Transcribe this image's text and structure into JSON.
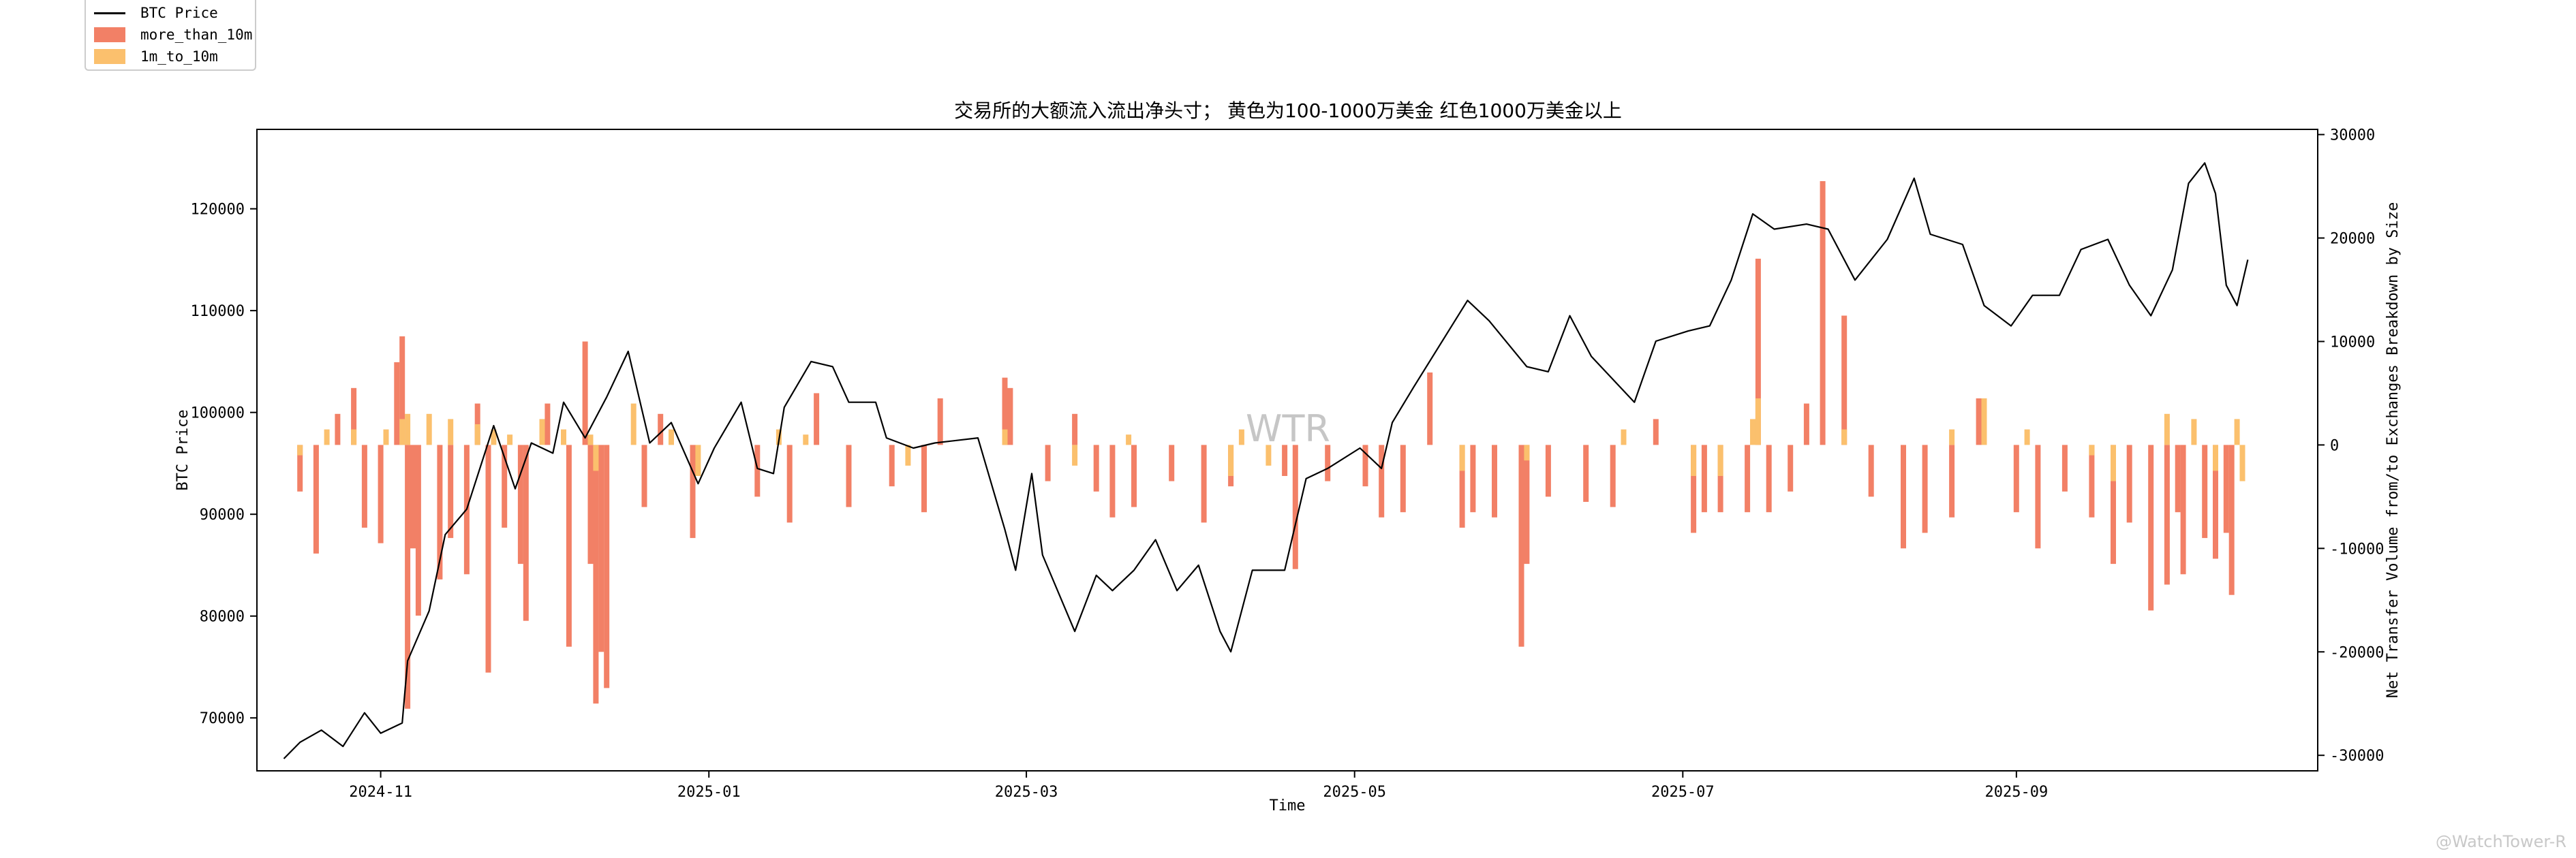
{
  "chart_data": {
    "type": "bar+line",
    "title": "交易所的大额流入流出净头寸； 黄色为100-1000万美金 红色1000万美金以上",
    "xlabel": "Time",
    "ylabel_left": "BTC Price",
    "ylabel_right": "Net Transfer Volume from/to Exchanges Breakdown by Size",
    "x_range": [
      "2024-10-09",
      "2025-10-27"
    ],
    "ylim_left": [
      64800,
      127800
    ],
    "ylim_right": [
      -31500,
      30500
    ],
    "x_ticks": [
      {
        "date": "2024-11-01",
        "label": "2024-11"
      },
      {
        "date": "2025-01-01",
        "label": "2025-01"
      },
      {
        "date": "2025-03-01",
        "label": "2025-03"
      },
      {
        "date": "2025-05-01",
        "label": "2025-05"
      },
      {
        "date": "2025-07-01",
        "label": "2025-07"
      },
      {
        "date": "2025-09-01",
        "label": "2025-09"
      }
    ],
    "y_ticks_left": [
      70000,
      80000,
      90000,
      100000,
      110000,
      120000
    ],
    "y_ticks_right": [
      -30000,
      -20000,
      -10000,
      0,
      10000,
      20000,
      30000
    ],
    "legend": {
      "placement": "upper-left-outside",
      "items": [
        {
          "label": "BTC Price",
          "kind": "line",
          "color": "#000000"
        },
        {
          "label": "more_than_10m",
          "kind": "bar",
          "color": "#f28066"
        },
        {
          "label": "1m_to_10m",
          "kind": "bar",
          "color": "#fbc06d"
        }
      ]
    },
    "watermark_center": "WTR",
    "price_series": {
      "name": "BTC Price",
      "color": "#000000",
      "points": [
        [
          "2024-10-14",
          66000
        ],
        [
          "2024-10-17",
          67600
        ],
        [
          "2024-10-21",
          68800
        ],
        [
          "2024-10-25",
          67200
        ],
        [
          "2024-10-29",
          70500
        ],
        [
          "2024-11-01",
          68500
        ],
        [
          "2024-11-05",
          69500
        ],
        [
          "2024-11-06",
          75600
        ],
        [
          "2024-11-10",
          80500
        ],
        [
          "2024-11-13",
          88000
        ],
        [
          "2024-11-17",
          90500
        ],
        [
          "2024-11-22",
          98700
        ],
        [
          "2024-11-26",
          92500
        ],
        [
          "2024-11-29",
          97000
        ],
        [
          "2024-12-03",
          96000
        ],
        [
          "2024-12-05",
          101000
        ],
        [
          "2024-12-09",
          97500
        ],
        [
          "2024-12-13",
          101500
        ],
        [
          "2024-12-17",
          106000
        ],
        [
          "2024-12-21",
          97000
        ],
        [
          "2024-12-25",
          99000
        ],
        [
          "2024-12-30",
          93000
        ],
        [
          "2025-01-02",
          96500
        ],
        [
          "2025-01-07",
          101000
        ],
        [
          "2025-01-10",
          94500
        ],
        [
          "2025-01-13",
          94000
        ],
        [
          "2025-01-15",
          100500
        ],
        [
          "2025-01-20",
          105000
        ],
        [
          "2025-01-24",
          104500
        ],
        [
          "2025-01-27",
          101000
        ],
        [
          "2025-02-01",
          101000
        ],
        [
          "2025-02-03",
          97500
        ],
        [
          "2025-02-08",
          96500
        ],
        [
          "2025-02-12",
          97000
        ],
        [
          "2025-02-20",
          97500
        ],
        [
          "2025-02-25",
          88500
        ],
        [
          "2025-02-27",
          84500
        ],
        [
          "2025-03-02",
          94000
        ],
        [
          "2025-03-04",
          86000
        ],
        [
          "2025-03-10",
          78500
        ],
        [
          "2025-03-14",
          84000
        ],
        [
          "2025-03-17",
          82500
        ],
        [
          "2025-03-21",
          84500
        ],
        [
          "2025-03-25",
          87500
        ],
        [
          "2025-03-29",
          82500
        ],
        [
          "2025-04-02",
          85000
        ],
        [
          "2025-04-06",
          78500
        ],
        [
          "2025-04-08",
          76500
        ],
        [
          "2025-04-12",
          84500
        ],
        [
          "2025-04-18",
          84500
        ],
        [
          "2025-04-22",
          93500
        ],
        [
          "2025-04-26",
          94500
        ],
        [
          "2025-05-02",
          96500
        ],
        [
          "2025-05-06",
          94500
        ],
        [
          "2025-05-08",
          99000
        ],
        [
          "2025-05-12",
          102500
        ],
        [
          "2025-05-22",
          111000
        ],
        [
          "2025-05-26",
          109000
        ],
        [
          "2025-06-02",
          104500
        ],
        [
          "2025-06-06",
          104000
        ],
        [
          "2025-06-10",
          109500
        ],
        [
          "2025-06-14",
          105500
        ],
        [
          "2025-06-22",
          101000
        ],
        [
          "2025-06-26",
          107000
        ],
        [
          "2025-07-02",
          108000
        ],
        [
          "2025-07-06",
          108500
        ],
        [
          "2025-07-10",
          113000
        ],
        [
          "2025-07-14",
          119500
        ],
        [
          "2025-07-18",
          118000
        ],
        [
          "2025-07-24",
          118500
        ],
        [
          "2025-07-28",
          118000
        ],
        [
          "2025-08-02",
          113000
        ],
        [
          "2025-08-08",
          117000
        ],
        [
          "2025-08-13",
          123000
        ],
        [
          "2025-08-16",
          117500
        ],
        [
          "2025-08-22",
          116500
        ],
        [
          "2025-08-26",
          110500
        ],
        [
          "2025-08-31",
          108500
        ],
        [
          "2025-09-04",
          111500
        ],
        [
          "2025-09-09",
          111500
        ],
        [
          "2025-09-13",
          116000
        ],
        [
          "2025-09-18",
          117000
        ],
        [
          "2025-09-22",
          112500
        ],
        [
          "2025-09-26",
          109500
        ],
        [
          "2025-09-30",
          114000
        ],
        [
          "2025-10-03",
          122500
        ],
        [
          "2025-10-06",
          124500
        ],
        [
          "2025-10-08",
          121500
        ],
        [
          "2025-10-10",
          112500
        ],
        [
          "2025-10-12",
          110500
        ],
        [
          "2025-10-14",
          115000
        ]
      ]
    },
    "bar_series": [
      {
        "name": "more_than_10m",
        "color": "#f28066",
        "points": [
          [
            "2024-10-17",
            -4500
          ],
          [
            "2024-10-20",
            -10500
          ],
          [
            "2024-10-24",
            3000
          ],
          [
            "2024-10-27",
            5500
          ],
          [
            "2024-10-29",
            -8000
          ],
          [
            "2024-11-01",
            -9500
          ],
          [
            "2024-11-04",
            8000
          ],
          [
            "2024-11-05",
            10500
          ],
          [
            "2024-11-06",
            -25500
          ],
          [
            "2024-11-07",
            -10000
          ],
          [
            "2024-11-08",
            -16500
          ],
          [
            "2024-11-12",
            -13000
          ],
          [
            "2024-11-14",
            -9000
          ],
          [
            "2024-11-17",
            -12500
          ],
          [
            "2024-11-19",
            4000
          ],
          [
            "2024-11-21",
            -22000
          ],
          [
            "2024-11-24",
            -8000
          ],
          [
            "2024-11-27",
            -11500
          ],
          [
            "2024-11-28",
            -17000
          ],
          [
            "2024-12-02",
            4000
          ],
          [
            "2024-12-06",
            -19500
          ],
          [
            "2024-12-09",
            10000
          ],
          [
            "2024-12-10",
            -11500
          ],
          [
            "2024-12-11",
            -25000
          ],
          [
            "2024-12-12",
            -20000
          ],
          [
            "2024-12-13",
            -23500
          ],
          [
            "2024-12-20",
            -6000
          ],
          [
            "2024-12-23",
            3000
          ],
          [
            "2024-12-29",
            -9000
          ],
          [
            "2025-01-10",
            -5000
          ],
          [
            "2025-01-16",
            -7500
          ],
          [
            "2025-01-21",
            5000
          ],
          [
            "2025-01-27",
            -6000
          ],
          [
            "2025-02-04",
            -4000
          ],
          [
            "2025-02-10",
            -6500
          ],
          [
            "2025-02-13",
            4500
          ],
          [
            "2025-02-25",
            6500
          ],
          [
            "2025-02-26",
            5500
          ],
          [
            "2025-03-05",
            -3500
          ],
          [
            "2025-03-10",
            3000
          ],
          [
            "2025-03-14",
            -4500
          ],
          [
            "2025-03-17",
            -7000
          ],
          [
            "2025-03-21",
            -6000
          ],
          [
            "2025-03-28",
            -3500
          ],
          [
            "2025-04-03",
            -7500
          ],
          [
            "2025-04-08",
            -4000
          ],
          [
            "2025-04-18",
            -3000
          ],
          [
            "2025-04-20",
            -12000
          ],
          [
            "2025-04-26",
            -3500
          ],
          [
            "2025-05-03",
            -4000
          ],
          [
            "2025-05-06",
            -7000
          ],
          [
            "2025-05-10",
            -6500
          ],
          [
            "2025-05-15",
            7000
          ],
          [
            "2025-05-21",
            -8000
          ],
          [
            "2025-05-23",
            -6500
          ],
          [
            "2025-05-27",
            -7000
          ],
          [
            "2025-06-01",
            -19500
          ],
          [
            "2025-06-02",
            -11500
          ],
          [
            "2025-06-06",
            -5000
          ],
          [
            "2025-06-13",
            -5500
          ],
          [
            "2025-06-18",
            -6000
          ],
          [
            "2025-06-26",
            2500
          ],
          [
            "2025-07-03",
            -8500
          ],
          [
            "2025-07-05",
            -6500
          ],
          [
            "2025-07-08",
            -6500
          ],
          [
            "2025-07-13",
            -6500
          ],
          [
            "2025-07-15",
            18000
          ],
          [
            "2025-07-17",
            -6500
          ],
          [
            "2025-07-21",
            -4500
          ],
          [
            "2025-07-24",
            4000
          ],
          [
            "2025-07-27",
            25500
          ],
          [
            "2025-07-31",
            12500
          ],
          [
            "2025-08-05",
            -5000
          ],
          [
            "2025-08-11",
            -10000
          ],
          [
            "2025-08-15",
            -8500
          ],
          [
            "2025-08-20",
            -7000
          ],
          [
            "2025-08-25",
            4500
          ],
          [
            "2025-09-01",
            -6500
          ],
          [
            "2025-09-05",
            -10000
          ],
          [
            "2025-09-10",
            -4500
          ],
          [
            "2025-09-15",
            -7000
          ],
          [
            "2025-09-19",
            -11500
          ],
          [
            "2025-09-22",
            -7500
          ],
          [
            "2025-09-26",
            -16000
          ],
          [
            "2025-09-29",
            -13500
          ],
          [
            "2025-10-01",
            -6500
          ],
          [
            "2025-10-02",
            -12500
          ],
          [
            "2025-10-06",
            -9000
          ],
          [
            "2025-10-08",
            -11000
          ],
          [
            "2025-10-10",
            -8500
          ],
          [
            "2025-10-11",
            -14500
          ]
        ]
      },
      {
        "name": "1m_to_10m",
        "color": "#fbc06d",
        "points": [
          [
            "2024-10-17",
            -1000
          ],
          [
            "2024-10-22",
            1500
          ],
          [
            "2024-10-27",
            1500
          ],
          [
            "2024-11-02",
            1500
          ],
          [
            "2024-11-05",
            2500
          ],
          [
            "2024-11-06",
            3000
          ],
          [
            "2024-11-10",
            3000
          ],
          [
            "2024-11-14",
            2500
          ],
          [
            "2024-11-19",
            2000
          ],
          [
            "2024-11-22",
            1500
          ],
          [
            "2024-11-25",
            1000
          ],
          [
            "2024-12-01",
            2500
          ],
          [
            "2024-12-05",
            1500
          ],
          [
            "2024-12-10",
            1000
          ],
          [
            "2024-12-11",
            -2500
          ],
          [
            "2024-12-18",
            4000
          ],
          [
            "2024-12-25",
            1500
          ],
          [
            "2024-12-30",
            -3000
          ],
          [
            "2025-01-14",
            1500
          ],
          [
            "2025-01-19",
            1000
          ],
          [
            "2025-02-07",
            -2000
          ],
          [
            "2025-02-25",
            1500
          ],
          [
            "2025-03-10",
            -2000
          ],
          [
            "2025-03-20",
            1000
          ],
          [
            "2025-04-08",
            -3000
          ],
          [
            "2025-04-10",
            1500
          ],
          [
            "2025-04-15",
            -2000
          ],
          [
            "2025-05-21",
            -2500
          ],
          [
            "2025-06-02",
            -1500
          ],
          [
            "2025-06-20",
            1500
          ],
          [
            "2025-07-03",
            -3000
          ],
          [
            "2025-07-08",
            -3000
          ],
          [
            "2025-07-14",
            2500
          ],
          [
            "2025-07-15",
            4500
          ],
          [
            "2025-07-31",
            1500
          ],
          [
            "2025-08-20",
            1500
          ],
          [
            "2025-08-26",
            4500
          ],
          [
            "2025-09-03",
            1500
          ],
          [
            "2025-09-15",
            -1000
          ],
          [
            "2025-09-19",
            -3500
          ],
          [
            "2025-09-29",
            3000
          ],
          [
            "2025-10-04",
            2500
          ],
          [
            "2025-10-08",
            -2500
          ],
          [
            "2025-10-12",
            2500
          ],
          [
            "2025-10-13",
            -3500
          ]
        ]
      }
    ]
  },
  "brand_watermark": "@WatchTower-R"
}
